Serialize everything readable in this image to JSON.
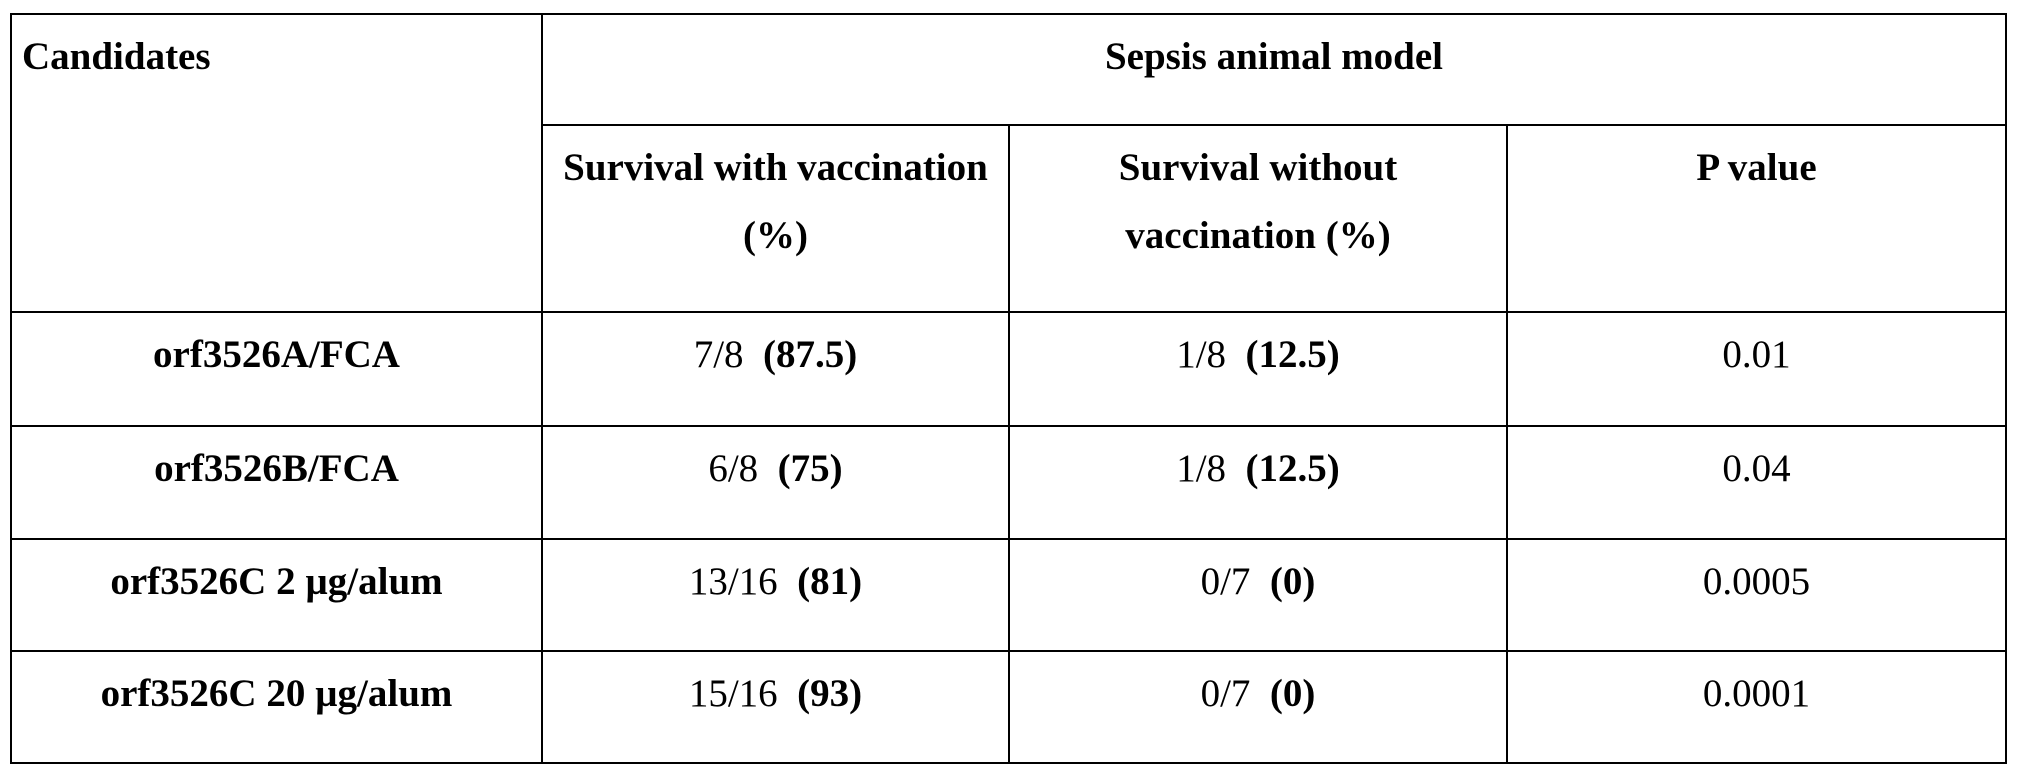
{
  "header": {
    "candidates": "Candidates",
    "group": "Sepsis animal model",
    "columns": [
      "Survival with vaccination (%)",
      "Survival without vaccination (%)",
      "P value"
    ]
  },
  "rows": [
    {
      "candidate": "orf3526A/FCA",
      "with_fraction": "7/8",
      "with_percent": "(87.5)",
      "without_fraction": "1/8",
      "without_percent": "(12.5)",
      "p_value": "0.01"
    },
    {
      "candidate": "orf3526B/FCA",
      "with_fraction": "6/8",
      "with_percent": "(75)",
      "without_fraction": "1/8",
      "without_percent": "(12.5)",
      "p_value": "0.04"
    },
    {
      "candidate": "orf3526C 2 µg/alum",
      "with_fraction": "13/16",
      "with_percent": "(81)",
      "without_fraction": "0/7",
      "without_percent": "(0)",
      "p_value": "0.0005"
    },
    {
      "candidate": "orf3526C 20 µg/alum",
      "with_fraction": "15/16",
      "with_percent": "(93)",
      "without_fraction": "0/7",
      "without_percent": "(0)",
      "p_value": "0.0001"
    }
  ]
}
